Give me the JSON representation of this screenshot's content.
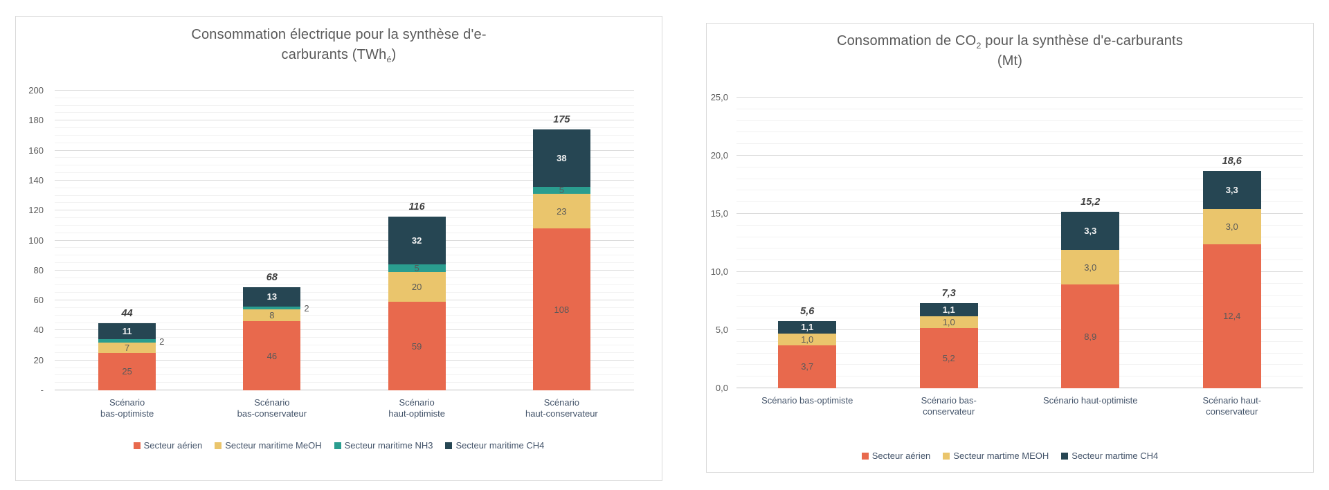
{
  "charts": [
    {
      "title": {
        "line1_pre": "Consommation électrique pour la synthèse d'e-",
        "line1_sub": "",
        "line1_post": "",
        "line2_pre": "carburants (TWh",
        "line2_sub": "é",
        "line2_post": ")"
      }
    },
    {
      "title": {
        "line1_pre": "Consommation de CO",
        "line1_sub": "2",
        "line1_post": " pour la synthèse d'e-carburants",
        "line2_pre": "(Mt)",
        "line2_sub": "",
        "line2_post": ""
      }
    }
  ],
  "chart_data": [
    {
      "type": "bar",
      "stacked": true,
      "title": "Consommation électrique pour la synthèse d'e-carburants (TWhé)",
      "ylabel": "TWhé",
      "categories": [
        "Scénario bas-optimiste",
        "Scénario bas-conservateur",
        "Scénario haut-optimiste",
        "Scénario haut-conservateur"
      ],
      "category_lines": [
        [
          "Scénario",
          "bas-optimiste"
        ],
        [
          "Scénario",
          "bas-conservateur"
        ],
        [
          "Scénario",
          "haut-optimiste"
        ],
        [
          "Scénario",
          "haut-conservateur"
        ]
      ],
      "series": [
        {
          "name": "Secteur aérien",
          "color": "#e8694d",
          "values": [
            25,
            46,
            59,
            108
          ],
          "labels": [
            "25",
            "46",
            "59",
            "108"
          ]
        },
        {
          "name": "Secteur maritime MeOH",
          "color": "#eac56c",
          "values": [
            7,
            8,
            20,
            23
          ],
          "labels": [
            "7",
            "8",
            "20",
            "23"
          ]
        },
        {
          "name": "Secteur maritime NH3",
          "color": "#2a9d8f",
          "values": [
            2,
            2,
            5,
            5
          ],
          "labels": [
            "2",
            "2",
            "5",
            "5"
          ]
        },
        {
          "name": "Secteur maritime CH4",
          "color": "#264653",
          "values": [
            11,
            13,
            32,
            38
          ],
          "labels": [
            "11",
            "13",
            "32",
            "38"
          ]
        }
      ],
      "totals": [
        "44",
        "68",
        "116",
        "175"
      ],
      "ylim": [
        0,
        200
      ],
      "y_major": 20,
      "y_minor": 5,
      "y_tick_labels": [
        "-",
        "20",
        "40",
        "60",
        "80",
        "100",
        "120",
        "140",
        "160",
        "180",
        "200"
      ],
      "grid": true,
      "legend_position": "bottom"
    },
    {
      "type": "bar",
      "stacked": true,
      "title": "Consommation de CO2 pour la synthèse d'e-carburants (Mt)",
      "ylabel": "Mt",
      "categories": [
        "Scénario bas-optimiste",
        "Scénario bas-conservateur",
        "Scénario haut-optimiste",
        "Scénario haut-conservateur"
      ],
      "category_lines": [
        [
          "Scénario bas-optimiste"
        ],
        [
          "Scénario bas-",
          "conservateur"
        ],
        [
          "Scénario haut-optimiste"
        ],
        [
          "Scénario haut-",
          "conservateur"
        ]
      ],
      "series": [
        {
          "name": "Secteur aérien",
          "color": "#e8694d",
          "values": [
            3.7,
            5.2,
            8.9,
            12.4
          ],
          "labels": [
            "3,7",
            "5,2",
            "8,9",
            "12,4"
          ]
        },
        {
          "name": "Secteur martime MEOH",
          "color": "#eac56c",
          "values": [
            1.0,
            1.0,
            3.0,
            3.0
          ],
          "labels": [
            "1,0",
            "1,0",
            "3,0",
            "3,0"
          ]
        },
        {
          "name": "Secteur martime CH4",
          "color": "#264653",
          "values": [
            1.1,
            1.1,
            3.3,
            3.3
          ],
          "labels": [
            "1,1",
            "1,1",
            "3,3",
            "3,3"
          ]
        }
      ],
      "totals": [
        "5,6",
        "7,3",
        "15,2",
        "18,6"
      ],
      "ylim": [
        0,
        25
      ],
      "y_major": 5,
      "y_minor": 1,
      "y_tick_labels": [
        "0,0",
        "5,0",
        "10,0",
        "15,0",
        "20,0",
        "25,0"
      ],
      "grid": true,
      "legend_position": "bottom"
    }
  ]
}
